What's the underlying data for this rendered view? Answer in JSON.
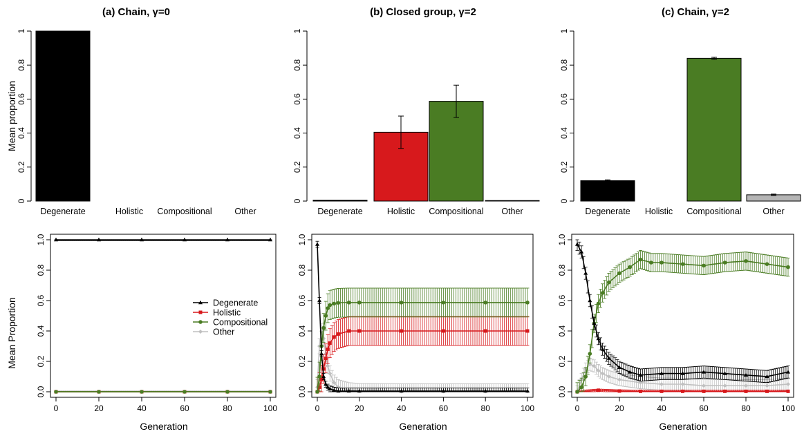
{
  "colors": {
    "Degenerate": "#000000",
    "Holistic": "#d7191c",
    "Compositional": "#4a7c23",
    "Other": "#b5b5b5",
    "Holistic_line": "#d7191c",
    "Compositional_line": "#4a7c23",
    "Other_line": "#c0c0c0"
  },
  "chart_data": [
    {
      "type": "bar",
      "title": "(a) Chain, γ=0",
      "ylabel": "Mean proportion",
      "xlabel": "",
      "categories": [
        "Degenerate",
        "Holistic",
        "Compositional",
        "Other"
      ],
      "values": [
        1.0,
        0.0,
        0.0,
        0.0
      ],
      "errors": [
        0.0,
        0.0,
        0.0,
        0.0
      ],
      "ylim": [
        0,
        1
      ],
      "yticks": [
        "0",
        "0.2",
        "0.4",
        "0.6",
        "0.8",
        "1"
      ]
    },
    {
      "type": "bar",
      "title": "(b) Closed group, γ=2",
      "ylabel": "",
      "xlabel": "",
      "categories": [
        "Degenerate",
        "Holistic",
        "Compositional",
        "Other"
      ],
      "values": [
        0.005,
        0.405,
        0.587,
        0.003
      ],
      "errors": [
        0.0,
        0.095,
        0.095,
        0.0
      ],
      "ylim": [
        0,
        1
      ],
      "yticks": [
        "0",
        "0.2",
        "0.4",
        "0.6",
        "0.8",
        "1"
      ]
    },
    {
      "type": "bar",
      "title": "(c) Chain, γ=2",
      "ylabel": "",
      "xlabel": "",
      "categories": [
        "Degenerate",
        "Holistic",
        "Compositional",
        "Other"
      ],
      "values": [
        0.12,
        0.0,
        0.84,
        0.037
      ],
      "errors": [
        0.005,
        0.0,
        0.006,
        0.004
      ],
      "ylim": [
        0,
        1
      ],
      "yticks": [
        "0",
        "0.2",
        "0.4",
        "0.6",
        "0.8",
        "1"
      ]
    },
    {
      "type": "line",
      "title": "",
      "ylabel": "Mean Proportion",
      "xlabel": "Generation",
      "xlim": [
        0,
        100
      ],
      "ylim": [
        0,
        1
      ],
      "xticks": [
        "0",
        "20",
        "40",
        "60",
        "80",
        "100"
      ],
      "yticks": [
        "0.0",
        "0.2",
        "0.4",
        "0.6",
        "0.8",
        "1.0"
      ],
      "legend": {
        "position": "center-right",
        "entries": [
          "Degenerate",
          "Holistic",
          "Compositional",
          "Other"
        ]
      },
      "series": [
        {
          "name": "Degenerate",
          "x": [
            0,
            20,
            40,
            60,
            80,
            100
          ],
          "y": [
            1.0,
            1.0,
            1.0,
            1.0,
            1.0,
            1.0
          ],
          "err": 0.006
        },
        {
          "name": "Holistic",
          "x": [
            0,
            20,
            40,
            60,
            80,
            100
          ],
          "y": [
            0.0,
            0.0,
            0.0,
            0.0,
            0.0,
            0.0
          ],
          "err": 0.002
        },
        {
          "name": "Compositional",
          "x": [
            0,
            20,
            40,
            60,
            80,
            100
          ],
          "y": [
            0.0,
            0.0,
            0.0,
            0.0,
            0.0,
            0.0
          ],
          "err": 0.002
        },
        {
          "name": "Other",
          "x": [
            0,
            20,
            40,
            60,
            80,
            100
          ],
          "y": [
            0.0,
            0.0,
            0.0,
            0.0,
            0.0,
            0.0
          ],
          "err": 0.006
        }
      ]
    },
    {
      "type": "line",
      "title": "",
      "ylabel": "",
      "xlabel": "Generation",
      "xlim": [
        0,
        100
      ],
      "ylim": [
        0,
        1
      ],
      "xticks": [
        "0",
        "20",
        "40",
        "60",
        "80",
        "100"
      ],
      "yticks": [
        "0.0",
        "0.2",
        "0.4",
        "0.6",
        "0.8",
        "1.0"
      ],
      "series": [
        {
          "name": "Degenerate",
          "x": [
            0,
            1,
            2,
            3,
            4,
            5,
            6,
            8,
            10,
            15,
            20,
            40,
            60,
            80,
            100
          ],
          "y": [
            0.97,
            0.6,
            0.25,
            0.1,
            0.05,
            0.03,
            0.02,
            0.01,
            0.005,
            0.005,
            0.005,
            0.005,
            0.005,
            0.005,
            0.005
          ],
          "err": 0.02
        },
        {
          "name": "Holistic",
          "x": [
            0,
            1,
            2,
            3,
            4,
            5,
            6,
            8,
            10,
            15,
            20,
            40,
            60,
            80,
            100
          ],
          "y": [
            0.0,
            0.03,
            0.08,
            0.15,
            0.22,
            0.28,
            0.32,
            0.36,
            0.38,
            0.4,
            0.4,
            0.4,
            0.4,
            0.4,
            0.4
          ],
          "err": 0.095
        },
        {
          "name": "Compositional",
          "x": [
            0,
            1,
            2,
            3,
            4,
            5,
            6,
            8,
            10,
            15,
            20,
            40,
            60,
            80,
            100
          ],
          "y": [
            0.0,
            0.1,
            0.3,
            0.42,
            0.5,
            0.55,
            0.57,
            0.58,
            0.585,
            0.587,
            0.587,
            0.587,
            0.587,
            0.587,
            0.587
          ],
          "err": 0.095
        },
        {
          "name": "Other",
          "x": [
            0,
            1,
            2,
            3,
            4,
            5,
            6,
            8,
            10,
            15,
            20,
            40,
            60,
            80,
            100
          ],
          "y": [
            0.03,
            0.3,
            0.4,
            0.35,
            0.25,
            0.17,
            0.12,
            0.06,
            0.03,
            0.01,
            0.005,
            0.003,
            0.003,
            0.003,
            0.003
          ],
          "err": 0.05
        }
      ]
    },
    {
      "type": "line",
      "title": "",
      "ylabel": "",
      "xlabel": "Generation",
      "xlim": [
        0,
        100
      ],
      "ylim": [
        0,
        1
      ],
      "xticks": [
        "0",
        "20",
        "40",
        "60",
        "80",
        "100"
      ],
      "yticks": [
        "0.0",
        "0.2",
        "0.4",
        "0.6",
        "0.8",
        "1.0"
      ],
      "series": [
        {
          "name": "Degenerate",
          "x": [
            0,
            2,
            4,
            6,
            8,
            10,
            12,
            15,
            20,
            25,
            30,
            40,
            50,
            60,
            70,
            80,
            90,
            100
          ],
          "y": [
            0.97,
            0.92,
            0.78,
            0.6,
            0.45,
            0.35,
            0.28,
            0.22,
            0.16,
            0.13,
            0.11,
            0.12,
            0.12,
            0.13,
            0.12,
            0.11,
            0.1,
            0.13
          ],
          "err": 0.04
        },
        {
          "name": "Holistic",
          "x": [
            0,
            10,
            20,
            30,
            40,
            50,
            60,
            70,
            80,
            90,
            100
          ],
          "y": [
            0.0,
            0.01,
            0.005,
            0.003,
            0.003,
            0.003,
            0.003,
            0.003,
            0.003,
            0.003,
            0.003
          ],
          "err": 0.008
        },
        {
          "name": "Compositional",
          "x": [
            0,
            2,
            4,
            6,
            8,
            10,
            12,
            15,
            20,
            25,
            30,
            35,
            40,
            50,
            60,
            70,
            80,
            90,
            100
          ],
          "y": [
            0.0,
            0.03,
            0.1,
            0.25,
            0.45,
            0.58,
            0.65,
            0.72,
            0.78,
            0.82,
            0.87,
            0.85,
            0.85,
            0.84,
            0.83,
            0.85,
            0.86,
            0.84,
            0.82
          ],
          "err": 0.06
        },
        {
          "name": "Other",
          "x": [
            0,
            2,
            4,
            6,
            8,
            10,
            12,
            15,
            20,
            30,
            40,
            50,
            60,
            70,
            80,
            90,
            100
          ],
          "y": [
            0.0,
            0.08,
            0.15,
            0.18,
            0.17,
            0.14,
            0.12,
            0.1,
            0.08,
            0.06,
            0.05,
            0.05,
            0.04,
            0.04,
            0.04,
            0.04,
            0.05
          ],
          "err": 0.04
        }
      ]
    }
  ]
}
